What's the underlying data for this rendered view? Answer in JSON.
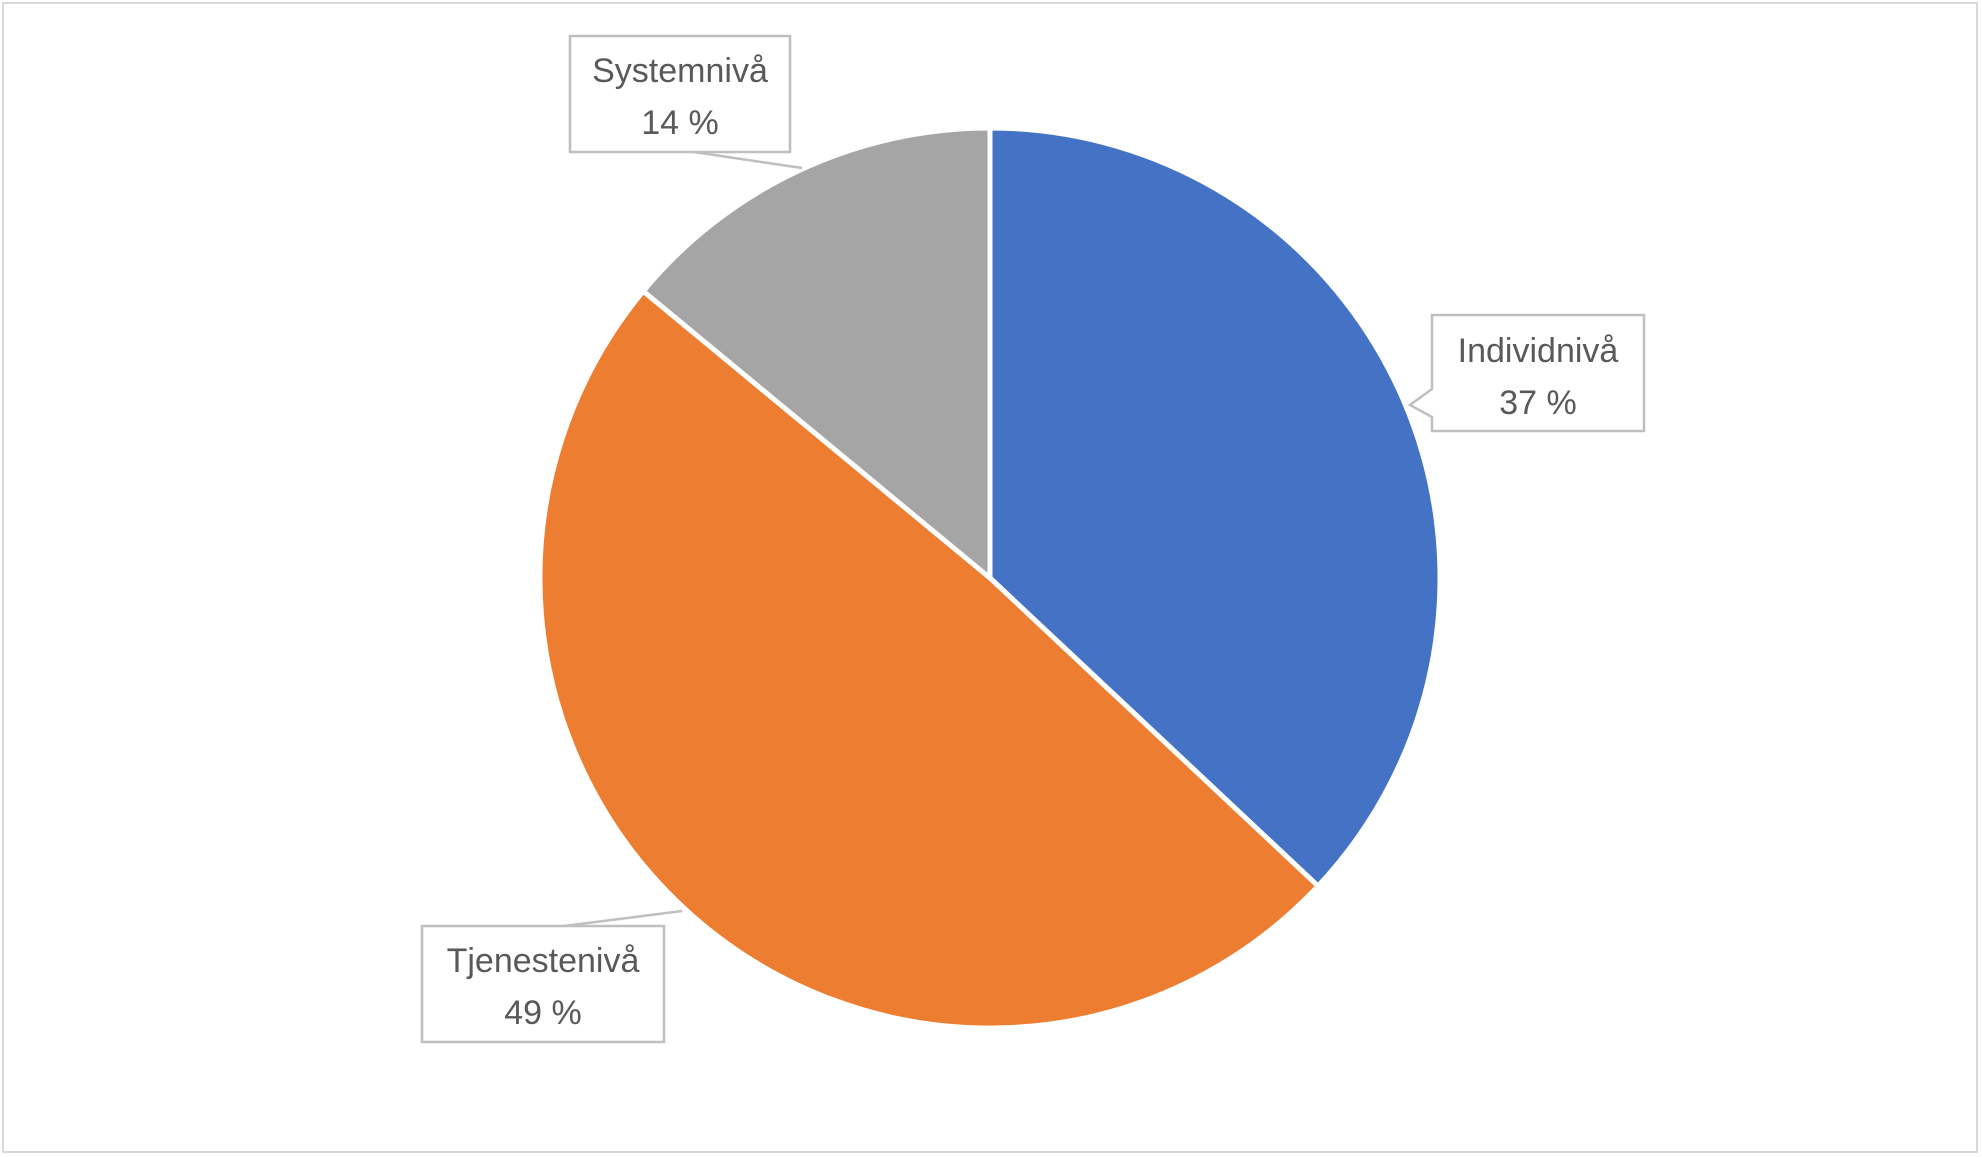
{
  "chart_data": {
    "type": "pie",
    "title": "",
    "categories": [
      "Individnivå",
      "Tjenestenivå",
      "Systemnivå"
    ],
    "values": [
      37,
      49,
      14
    ],
    "value_labels": [
      "37 %",
      "49 %",
      "14 %"
    ],
    "colors": [
      "#4472c4",
      "#ed7d31",
      "#a5a5a5"
    ],
    "start_angle_deg": 0,
    "direction": "clockwise",
    "legend": "none",
    "data_labels": "callouts with category name and percentage"
  }
}
